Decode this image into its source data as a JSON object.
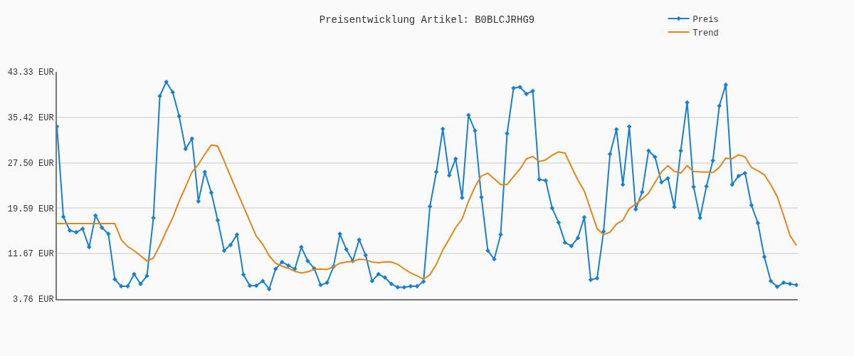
{
  "chart_data": {
    "type": "line",
    "title": "Preisentwicklung Artikel: B0BLCJRHG9",
    "categories": [
      null,
      null,
      null,
      null,
      null,
      null,
      null,
      null,
      null,
      null,
      null,
      null,
      null,
      null,
      null,
      null,
      null,
      null,
      null,
      null,
      null,
      null,
      null,
      null,
      null,
      null,
      null,
      null,
      null,
      null,
      null,
      null,
      null,
      null,
      null,
      null,
      null,
      null,
      null,
      null,
      null,
      null,
      null,
      null,
      null,
      null,
      null,
      null,
      null,
      null,
      null,
      null,
      null,
      null,
      null,
      null,
      null,
      null,
      null,
      null,
      null,
      null,
      null,
      null,
      null,
      null,
      null,
      null,
      null,
      null,
      null,
      null,
      null,
      null,
      null,
      null,
      null,
      null,
      null,
      null,
      null,
      null,
      null,
      null,
      null,
      null,
      null,
      null,
      null,
      null,
      null,
      null,
      null,
      null,
      null,
      null,
      null,
      null,
      null,
      null,
      null,
      null,
      null,
      null,
      null,
      null,
      null,
      null,
      null,
      null,
      null,
      null,
      null,
      null,
      null,
      null
    ],
    "series": [
      {
        "name": "Preis",
        "color": "#1a7fcc",
        "marker": "diamond",
        "values": [
          33.8,
          18.1,
          15.7,
          15.4,
          16.0,
          12.8,
          18.3,
          16.2,
          15.1,
          7.2,
          6.0,
          6.0,
          8.1,
          6.4,
          7.8,
          17.9,
          39.1,
          41.6,
          39.8,
          35.6,
          29.9,
          31.7,
          20.8,
          25.9,
          22.3,
          17.5,
          12.2,
          13.2,
          15.0,
          8.0,
          6.1,
          6.1,
          6.9,
          5.5,
          9.0,
          10.2,
          9.6,
          9.0,
          12.8,
          10.4,
          9.1,
          6.2,
          6.6,
          9.4,
          15.1,
          12.4,
          10.4,
          14.1,
          11.4,
          6.9,
          8.1,
          7.5,
          6.4,
          5.8,
          5.8,
          6.0,
          6.0,
          6.8,
          19.9,
          25.9,
          33.4,
          25.3,
          28.2,
          21.4,
          35.8,
          33.1,
          21.5,
          12.2,
          10.7,
          15.0,
          32.6,
          40.5,
          40.7,
          39.5,
          40.0,
          24.6,
          24.4,
          19.6,
          17.1,
          13.6,
          13.0,
          14.4,
          18.0,
          7.1,
          7.4,
          15.5,
          29.0,
          33.3,
          23.7,
          33.8,
          19.4,
          22.4,
          29.6,
          28.5,
          24.1,
          24.8,
          19.8,
          29.6,
          38.0,
          23.3,
          17.9,
          23.4,
          27.9,
          37.4,
          41.1,
          23.7,
          25.2,
          25.7,
          20.1,
          17.0,
          11.1,
          6.9,
          5.9,
          6.6,
          6.4,
          6.2
        ]
      },
      {
        "name": "Trend",
        "color": "#e0861a",
        "marker": "none",
        "values": [
          16.9,
          16.9,
          16.9,
          16.9,
          16.9,
          16.9,
          16.9,
          16.9,
          16.9,
          16.9,
          14.1,
          12.9,
          12.2,
          11.3,
          10.4,
          10.9,
          13.1,
          15.6,
          17.9,
          20.8,
          23.3,
          25.9,
          27.2,
          29.0,
          30.6,
          30.4,
          27.8,
          25.1,
          22.5,
          19.9,
          17.3,
          14.7,
          13.3,
          11.3,
          10.0,
          9.5,
          9.1,
          8.6,
          8.3,
          8.5,
          8.9,
          9.0,
          8.9,
          9.4,
          10.0,
          10.2,
          10.3,
          10.7,
          10.6,
          10.2,
          10.1,
          10.2,
          10.2,
          9.8,
          9.0,
          8.3,
          7.8,
          7.2,
          8.0,
          9.8,
          12.3,
          14.2,
          16.2,
          17.7,
          20.8,
          23.3,
          25.2,
          25.7,
          24.7,
          23.7,
          23.7,
          25.1,
          26.4,
          28.2,
          28.6,
          27.7,
          28.0,
          28.8,
          29.4,
          29.2,
          26.8,
          24.5,
          22.6,
          19.3,
          16.0,
          15.0,
          15.4,
          16.8,
          17.5,
          19.5,
          20.3,
          21.2,
          22.2,
          24.1,
          25.9,
          27.0,
          26.0,
          25.7,
          27.0,
          26.0,
          25.9,
          25.9,
          25.8,
          26.7,
          28.3,
          28.2,
          28.9,
          28.5,
          26.7,
          26.1,
          25.4,
          23.7,
          21.6,
          18.3,
          14.8,
          13.1
        ]
      }
    ],
    "ylim": [
      3.76,
      43.33
    ],
    "yticks": [
      {
        "value": 3.76,
        "label": "3.76 EUR"
      },
      {
        "value": 11.67,
        "label": "11.67 EUR"
      },
      {
        "value": 19.59,
        "label": "19.59 EUR"
      },
      {
        "value": 27.5,
        "label": "27.50 EUR"
      },
      {
        "value": 35.42,
        "label": "35.42 EUR"
      },
      {
        "value": 43.33,
        "label": "43.33 EUR"
      }
    ],
    "grid": "y",
    "legend": "top right",
    "tick_labels": "y",
    "line_style": "solid"
  }
}
